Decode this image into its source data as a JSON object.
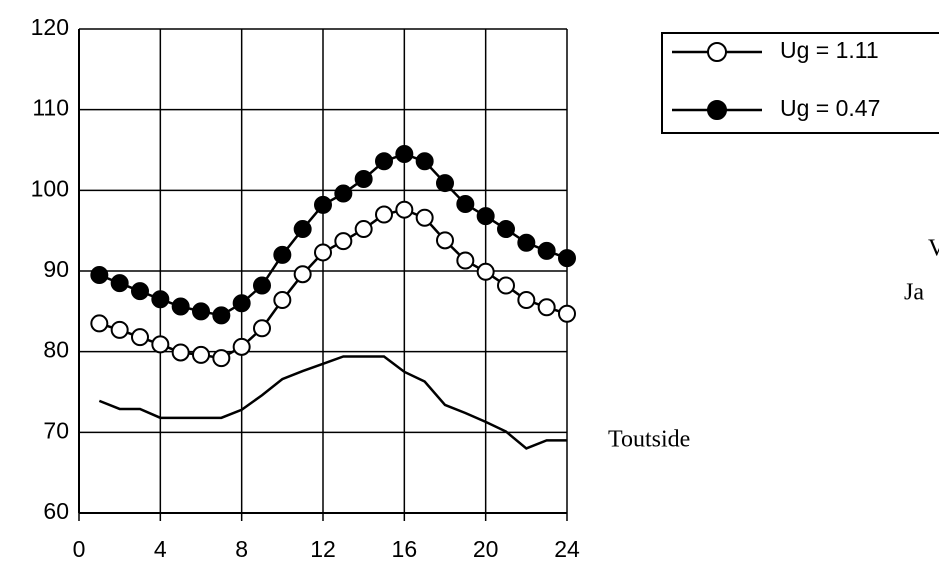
{
  "chart_data": {
    "type": "line",
    "x": [
      1,
      2,
      3,
      4,
      5,
      6,
      7,
      8,
      9,
      10,
      11,
      12,
      13,
      14,
      15,
      16,
      17,
      18,
      19,
      20,
      21,
      22,
      23,
      24
    ],
    "series": [
      {
        "name": "Ug = 1.11",
        "color": "#000000",
        "marker": "open",
        "values": [
          83.5,
          82.7,
          81.8,
          80.9,
          79.9,
          79.6,
          79.2,
          80.6,
          82.9,
          86.4,
          89.6,
          92.3,
          93.7,
          95.2,
          97.0,
          97.6,
          96.6,
          93.8,
          91.3,
          89.9,
          88.2,
          86.4,
          85.5,
          84.7
        ]
      },
      {
        "name": "Ug = 0.47",
        "color": "#000000",
        "marker": "filled",
        "values": [
          89.5,
          88.5,
          87.5,
          86.5,
          85.6,
          85.0,
          84.5,
          86.0,
          88.2,
          92.0,
          95.2,
          98.2,
          99.6,
          101.4,
          103.6,
          104.5,
          103.6,
          100.9,
          98.3,
          96.8,
          95.2,
          93.5,
          92.5,
          91.6
        ]
      },
      {
        "name": "Toutside",
        "color": "#000000",
        "marker": "none",
        "values": [
          73.9,
          72.9,
          72.9,
          71.8,
          71.8,
          71.8,
          71.8,
          72.8,
          74.6,
          76.6,
          77.6,
          78.5,
          79.4,
          79.4,
          79.4,
          77.5,
          76.3,
          73.4,
          72.4,
          71.3,
          70.1,
          68.0,
          69.0,
          69.0
        ]
      }
    ],
    "annotations": [
      "V",
      "Ja"
    ],
    "xlim": [
      0,
      24
    ],
    "xticks": [
      0,
      4,
      8,
      12,
      16,
      20,
      24
    ],
    "ylim": [
      60,
      120
    ],
    "yticks": [
      60,
      70,
      80,
      90,
      100,
      110,
      120
    ],
    "grid": true,
    "legend": "top-right"
  }
}
